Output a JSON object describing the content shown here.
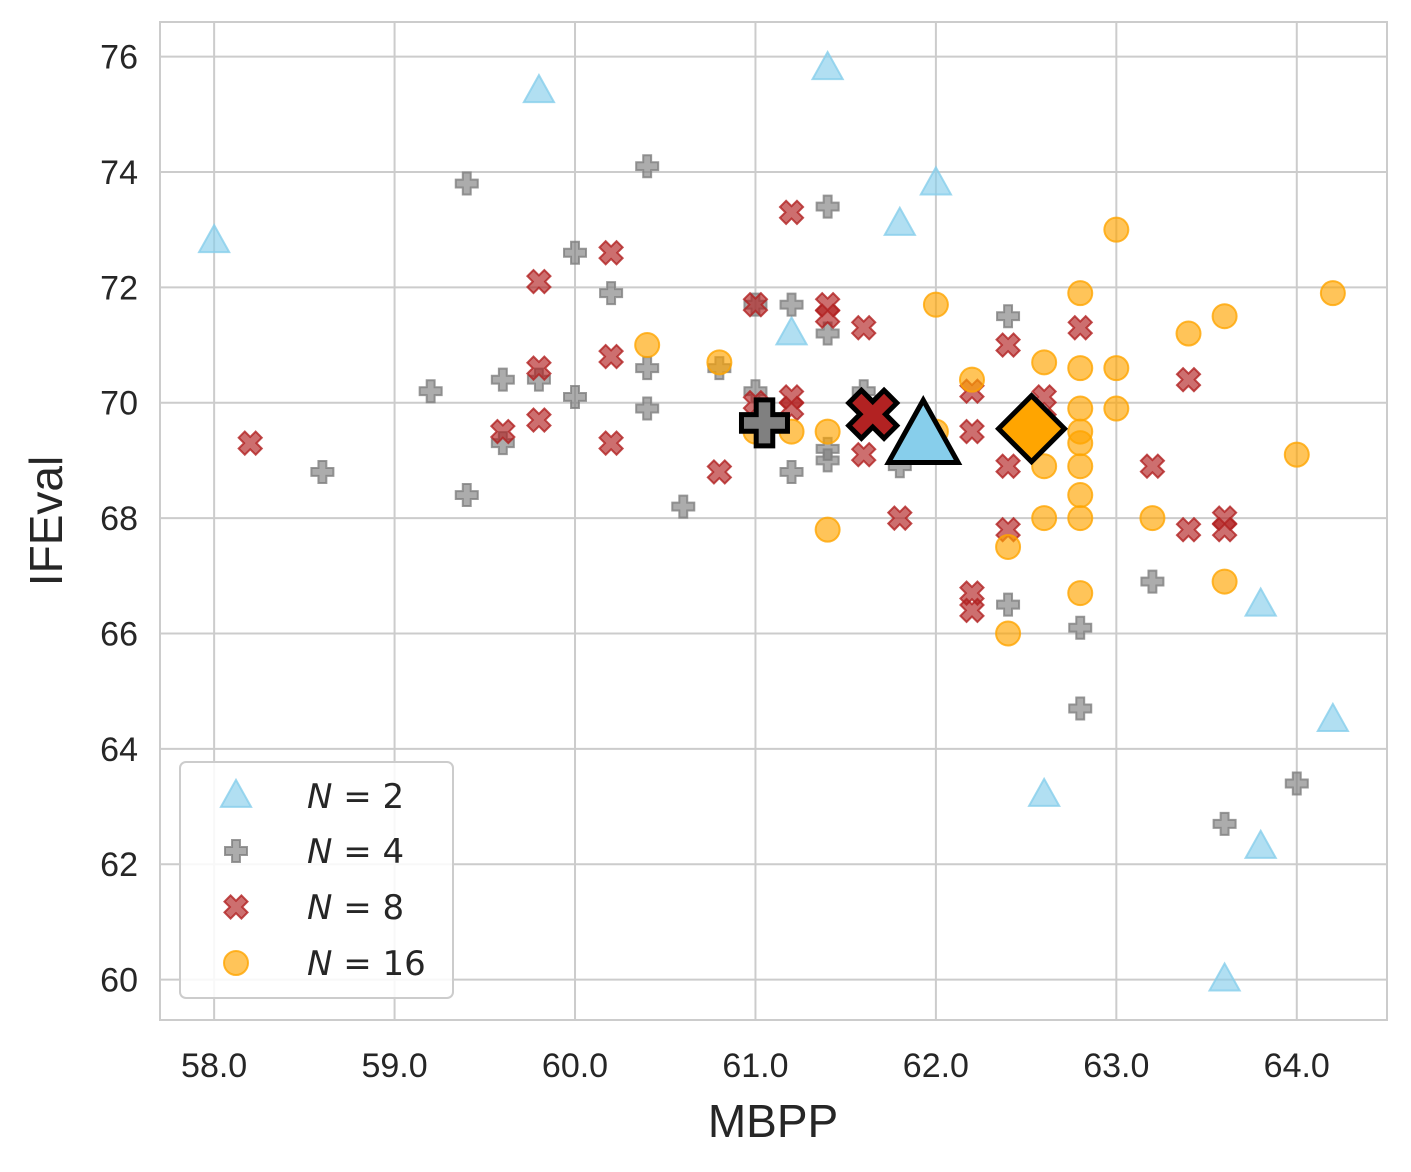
{
  "chart_data": {
    "type": "scatter",
    "title": "",
    "xlabel": "MBPP",
    "ylabel": "IFEval",
    "xlim": [
      57.7,
      64.5
    ],
    "ylim": [
      59.3,
      76.6
    ],
    "xticks": [
      58.0,
      59.0,
      60.0,
      61.0,
      62.0,
      63.0,
      64.0
    ],
    "xtick_labels": [
      "58.0",
      "59.0",
      "60.0",
      "61.0",
      "62.0",
      "63.0",
      "64.0"
    ],
    "yticks": [
      60,
      62,
      64,
      66,
      68,
      70,
      72,
      74,
      76
    ],
    "ytick_labels": [
      "60",
      "62",
      "64",
      "66",
      "68",
      "70",
      "72",
      "74",
      "76"
    ],
    "grid": true,
    "legend_position": "bottom-left",
    "series": [
      {
        "name": "N = 2",
        "legend_var": "N",
        "legend_eq": " = ",
        "legend_num": "2",
        "marker": "triangle",
        "color": "#87CEEB",
        "points": [
          [
            58.0,
            72.8
          ],
          [
            59.8,
            75.4
          ],
          [
            61.4,
            75.8
          ],
          [
            62.0,
            73.8
          ],
          [
            61.8,
            73.1
          ],
          [
            61.2,
            71.2
          ],
          [
            62.6,
            63.2
          ],
          [
            63.8,
            66.5
          ],
          [
            64.2,
            64.5
          ],
          [
            63.8,
            62.3
          ],
          [
            63.6,
            60.0
          ]
        ],
        "mean": [
          61.93,
          69.4
        ]
      },
      {
        "name": "N = 4",
        "legend_var": "N",
        "legend_eq": " = ",
        "legend_num": "4",
        "marker": "plus",
        "color": "#808080",
        "points": [
          [
            58.6,
            68.8
          ],
          [
            59.2,
            70.2
          ],
          [
            59.4,
            73.8
          ],
          [
            59.4,
            68.4
          ],
          [
            59.6,
            70.4
          ],
          [
            59.6,
            69.3
          ],
          [
            59.8,
            70.4
          ],
          [
            60.0,
            72.6
          ],
          [
            60.0,
            70.1
          ],
          [
            60.2,
            71.9
          ],
          [
            60.4,
            74.1
          ],
          [
            60.4,
            70.6
          ],
          [
            60.4,
            69.9
          ],
          [
            60.6,
            68.2
          ],
          [
            60.8,
            70.6
          ],
          [
            61.0,
            70.2
          ],
          [
            61.0,
            71.7
          ],
          [
            61.2,
            71.7
          ],
          [
            61.2,
            68.8
          ],
          [
            61.4,
            73.4
          ],
          [
            61.4,
            71.2
          ],
          [
            61.4,
            69.2
          ],
          [
            61.4,
            69.0
          ],
          [
            61.6,
            70.2
          ],
          [
            61.8,
            68.9
          ],
          [
            62.4,
            71.5
          ],
          [
            62.4,
            66.5
          ],
          [
            62.8,
            66.1
          ],
          [
            62.8,
            64.7
          ],
          [
            63.2,
            66.9
          ],
          [
            63.6,
            62.7
          ],
          [
            64.0,
            63.4
          ]
        ],
        "mean": [
          61.05,
          69.65
        ]
      },
      {
        "name": "N = 8",
        "legend_var": "N",
        "legend_eq": " = ",
        "legend_num": "8",
        "marker": "x",
        "color": "#B22222",
        "points": [
          [
            58.2,
            69.3
          ],
          [
            59.6,
            69.5
          ],
          [
            59.8,
            72.1
          ],
          [
            59.8,
            70.6
          ],
          [
            59.8,
            69.7
          ],
          [
            60.2,
            72.6
          ],
          [
            60.2,
            70.8
          ],
          [
            60.2,
            69.3
          ],
          [
            60.8,
            68.8
          ],
          [
            61.0,
            71.7
          ],
          [
            61.0,
            70.0
          ],
          [
            61.2,
            73.3
          ],
          [
            61.2,
            70.1
          ],
          [
            61.2,
            69.9
          ],
          [
            61.4,
            71.7
          ],
          [
            61.4,
            71.5
          ],
          [
            61.6,
            71.3
          ],
          [
            61.6,
            69.1
          ],
          [
            61.8,
            68.0
          ],
          [
            62.2,
            70.2
          ],
          [
            62.2,
            69.5
          ],
          [
            62.2,
            66.7
          ],
          [
            62.2,
            66.4
          ],
          [
            62.4,
            71.0
          ],
          [
            62.4,
            68.9
          ],
          [
            62.4,
            67.8
          ],
          [
            62.6,
            70.1
          ],
          [
            62.6,
            69.7
          ],
          [
            62.8,
            71.3
          ],
          [
            63.2,
            68.9
          ],
          [
            63.4,
            70.4
          ],
          [
            63.4,
            67.8
          ],
          [
            63.6,
            68.0
          ],
          [
            63.6,
            67.8
          ]
        ],
        "mean": [
          61.65,
          69.8
        ]
      },
      {
        "name": "N = 16",
        "legend_var": "N",
        "legend_eq": " = ",
        "legend_num": "16",
        "marker": "circle",
        "color": "#FFA500",
        "points": [
          [
            60.4,
            71.0
          ],
          [
            60.8,
            70.7
          ],
          [
            61.0,
            69.5
          ],
          [
            61.2,
            69.5
          ],
          [
            61.4,
            69.5
          ],
          [
            61.4,
            67.8
          ],
          [
            62.0,
            71.7
          ],
          [
            62.0,
            69.5
          ],
          [
            62.2,
            70.4
          ],
          [
            62.4,
            67.5
          ],
          [
            62.4,
            66.0
          ],
          [
            62.6,
            70.7
          ],
          [
            62.6,
            68.9
          ],
          [
            62.6,
            68.0
          ],
          [
            62.8,
            71.9
          ],
          [
            62.8,
            70.6
          ],
          [
            62.8,
            69.9
          ],
          [
            62.8,
            69.5
          ],
          [
            62.8,
            69.3
          ],
          [
            62.8,
            68.9
          ],
          [
            62.8,
            68.4
          ],
          [
            62.8,
            68.0
          ],
          [
            62.8,
            66.7
          ],
          [
            63.0,
            73.0
          ],
          [
            63.0,
            70.6
          ],
          [
            63.0,
            69.9
          ],
          [
            63.2,
            68.0
          ],
          [
            63.4,
            71.2
          ],
          [
            63.6,
            71.5
          ],
          [
            63.6,
            66.9
          ],
          [
            64.0,
            69.1
          ],
          [
            64.2,
            71.9
          ]
        ],
        "mean": [
          62.53,
          69.55
        ]
      }
    ]
  }
}
